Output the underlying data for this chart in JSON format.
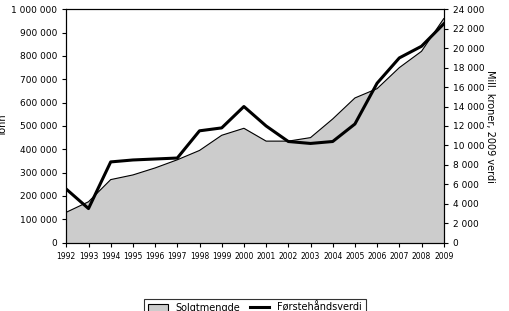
{
  "years": [
    1992,
    1993,
    1994,
    1995,
    1996,
    1997,
    1998,
    1999,
    2000,
    2001,
    2002,
    2003,
    2004,
    2005,
    2006,
    2007,
    2008,
    2009
  ],
  "solgtmengde": [
    130000,
    175000,
    270000,
    290000,
    320000,
    355000,
    395000,
    460000,
    490000,
    435000,
    435000,
    450000,
    530000,
    620000,
    660000,
    750000,
    820000,
    960000
  ],
  "forste_years": [
    1992,
    1993,
    1994,
    1995,
    1996,
    1997,
    1998,
    1999,
    2000,
    2001,
    2002,
    2003,
    2004,
    2005,
    2006,
    2007,
    2008,
    2009
  ],
  "forste_vals": [
    5500,
    3500,
    8300,
    8500,
    8600,
    8700,
    11500,
    11800,
    14000,
    12000,
    10400,
    10200,
    10400,
    12200,
    16400,
    19000,
    20200,
    22500
  ],
  "left_ylim": [
    0,
    1000000
  ],
  "right_ylim": [
    0,
    24000
  ],
  "left_yticks": [
    0,
    100000,
    200000,
    300000,
    400000,
    500000,
    600000,
    700000,
    800000,
    900000,
    1000000
  ],
  "right_yticks": [
    0,
    2000,
    4000,
    6000,
    8000,
    10000,
    12000,
    14000,
    16000,
    18000,
    20000,
    22000,
    24000
  ],
  "left_ylabel": "Tonn",
  "right_ylabel": "Mill. kroner, 2009 verdi",
  "area_color": "#cccccc",
  "area_edgecolor": "#000000",
  "line_color": "#000000",
  "background_color": "#ffffff",
  "legend_solgt": "Solgtmengde",
  "legend_forste": "Førstehåndsverdi"
}
